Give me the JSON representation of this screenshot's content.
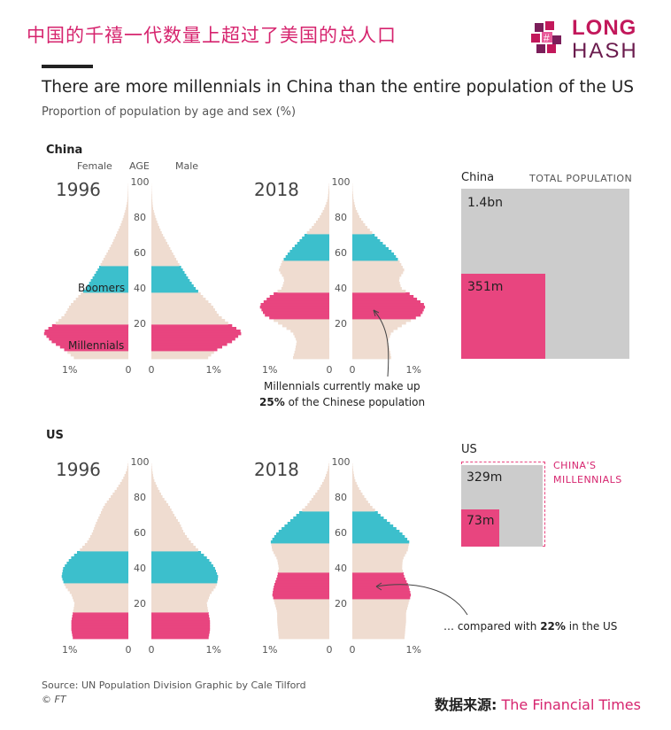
{
  "header_cn": "中国的千禧一代数量上超过了美国的总人口",
  "logo": {
    "line1": "LONG",
    "line2": "HASH"
  },
  "title": "There are more millennials in China than the entire population of the US",
  "subtitle": "Proportion of population by age and sex (%)",
  "labels": {
    "china": "China",
    "us": "US",
    "female": "Female",
    "age": "AGE",
    "male": "Male",
    "y1996": "1996",
    "y2018": "2018",
    "boomers": "Boomers",
    "millennials": "Millennials",
    "pct1": "1%",
    "zero": "0",
    "total_population": "TOTAL POPULATION",
    "chinas_millennials": "CHINA'S MILLENNIALS"
  },
  "annotations": {
    "china_line1": "Millennials currently make up",
    "china_pct": "25%",
    "china_rest": "of the Chinese population",
    "us_prefix": "… compared with",
    "us_pct": "22%",
    "us_rest": "in the US"
  },
  "footer": {
    "source": "Source: UN Population Division  Graphic by Cale Tilford",
    "copyright": "© FT",
    "data_source_label": "数据来源:",
    "data_source_value": "The Financial Times"
  },
  "colors": {
    "millennials": "#e8457f",
    "boomers": "#3cbfcc",
    "other": "#efdcd0",
    "total": "#cccccc",
    "accent": "#d6246e"
  },
  "chart_data": [
    {
      "type": "bar",
      "title": "China 1996",
      "orientation": "population-pyramid",
      "ages": [
        0,
        5,
        10,
        15,
        20,
        25,
        30,
        35,
        40,
        45,
        50,
        55,
        60,
        65,
        70,
        75,
        80,
        85,
        90,
        95,
        100
      ],
      "female": [
        0.65,
        0.78,
        0.95,
        1.05,
        0.9,
        0.78,
        0.72,
        0.62,
        0.52,
        0.45,
        0.38,
        0.32,
        0.26,
        0.2,
        0.15,
        0.1,
        0.06,
        0.03,
        0.01,
        0.005,
        0
      ],
      "male": [
        0.68,
        0.8,
        1.0,
        1.12,
        0.95,
        0.82,
        0.75,
        0.64,
        0.54,
        0.46,
        0.39,
        0.32,
        0.26,
        0.2,
        0.14,
        0.09,
        0.05,
        0.02,
        0.01,
        0.004,
        0
      ],
      "bands": [
        {
          "name": "Millennials",
          "from": 5,
          "to": 19
        },
        {
          "name": "Boomers",
          "from": 37,
          "to": 52
        }
      ],
      "xlim": [
        -1,
        1
      ],
      "ylim": [
        0,
        100
      ]
    },
    {
      "type": "bar",
      "title": "China 2018",
      "orientation": "population-pyramid",
      "ages": [
        0,
        5,
        10,
        15,
        20,
        25,
        30,
        35,
        40,
        45,
        50,
        55,
        60,
        65,
        70,
        75,
        80,
        85,
        90,
        95,
        100
      ],
      "female": [
        0.45,
        0.42,
        0.4,
        0.45,
        0.62,
        0.8,
        0.86,
        0.74,
        0.58,
        0.55,
        0.62,
        0.58,
        0.5,
        0.4,
        0.3,
        0.2,
        0.12,
        0.06,
        0.02,
        0.01,
        0
      ],
      "male": [
        0.48,
        0.46,
        0.44,
        0.48,
        0.65,
        0.85,
        0.9,
        0.76,
        0.6,
        0.57,
        0.64,
        0.58,
        0.5,
        0.38,
        0.27,
        0.17,
        0.09,
        0.04,
        0.015,
        0.005,
        0
      ],
      "bands": [
        {
          "name": "Millennials",
          "from": 23,
          "to": 37
        },
        {
          "name": "Boomers",
          "from": 55,
          "to": 70
        }
      ],
      "xlim": [
        -1,
        1
      ],
      "ylim": [
        0,
        100
      ]
    },
    {
      "type": "bar",
      "title": "US 1996",
      "orientation": "population-pyramid",
      "ages": [
        0,
        5,
        10,
        15,
        20,
        25,
        30,
        35,
        40,
        45,
        50,
        55,
        60,
        65,
        70,
        75,
        80,
        85,
        90,
        95,
        100
      ],
      "female": [
        0.68,
        0.7,
        0.7,
        0.68,
        0.66,
        0.7,
        0.78,
        0.82,
        0.8,
        0.72,
        0.6,
        0.5,
        0.44,
        0.4,
        0.35,
        0.3,
        0.22,
        0.14,
        0.07,
        0.02,
        0
      ],
      "male": [
        0.7,
        0.72,
        0.72,
        0.7,
        0.68,
        0.72,
        0.8,
        0.82,
        0.78,
        0.7,
        0.58,
        0.48,
        0.4,
        0.35,
        0.28,
        0.22,
        0.14,
        0.08,
        0.03,
        0.01,
        0
      ],
      "bands": [
        {
          "name": "Millennials",
          "from": 0,
          "to": 15
        },
        {
          "name": "Boomers",
          "from": 32,
          "to": 50
        }
      ],
      "xlim": [
        -1,
        1
      ],
      "ylim": [
        0,
        100
      ]
    },
    {
      "type": "bar",
      "title": "US 2018",
      "orientation": "population-pyramid",
      "ages": [
        0,
        5,
        10,
        15,
        20,
        25,
        30,
        35,
        40,
        45,
        50,
        55,
        60,
        65,
        70,
        75,
        80,
        85,
        90,
        95,
        100
      ],
      "female": [
        0.62,
        0.63,
        0.64,
        0.64,
        0.67,
        0.7,
        0.68,
        0.64,
        0.62,
        0.64,
        0.7,
        0.72,
        0.64,
        0.52,
        0.4,
        0.28,
        0.2,
        0.12,
        0.06,
        0.02,
        0
      ],
      "male": [
        0.64,
        0.65,
        0.66,
        0.66,
        0.69,
        0.72,
        0.69,
        0.64,
        0.61,
        0.62,
        0.68,
        0.7,
        0.6,
        0.47,
        0.34,
        0.23,
        0.15,
        0.08,
        0.03,
        0.01,
        0
      ],
      "bands": [
        {
          "name": "Millennials",
          "from": 22,
          "to": 37
        },
        {
          "name": "Boomers",
          "from": 54,
          "to": 72
        }
      ],
      "xlim": [
        -1,
        1
      ],
      "ylim": [
        0,
        100
      ]
    },
    {
      "type": "area",
      "title": "China",
      "series": [
        {
          "name": "TOTAL POPULATION",
          "value_text": "1.4bn",
          "value": 1400
        },
        {
          "name": "Millennials",
          "value_text": "351m",
          "value": 351
        }
      ]
    },
    {
      "type": "area",
      "title": "US",
      "series": [
        {
          "name": "Total",
          "value_text": "329m",
          "value": 329
        },
        {
          "name": "Millennials",
          "value_text": "73m",
          "value": 73
        },
        {
          "name": "CHINA'S MILLENNIALS",
          "value": 351
        }
      ]
    }
  ]
}
